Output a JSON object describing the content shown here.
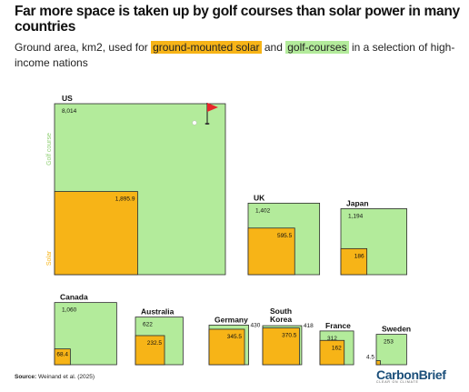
{
  "title": "Far more space is taken up by golf courses than solar power in many countries",
  "subtitle": {
    "before": "Ground area, km2, used for",
    "solar_label": "ground-mounted solar",
    "middle": "and",
    "golf_label": "golf-courses",
    "after": "in a selection of high-income nations"
  },
  "side_labels": {
    "golf": "Golf course",
    "solar": "Solar"
  },
  "source": {
    "label": "Source:",
    "text": "Weinand et al. (2025)"
  },
  "logo": {
    "name": "CarbonBrief",
    "tagline": "CLEAR ON CLIMATE"
  },
  "colors": {
    "golf": "#b3eb9b",
    "solar": "#f7b417",
    "stroke": "#2a2a2a",
    "flag": "#e8262b"
  },
  "chart_data": {
    "type": "area",
    "series": [
      {
        "name": "Golf course",
        "values": [
          8014,
          1402,
          1194,
          1060,
          622,
          430,
          418,
          312,
          253
        ]
      },
      {
        "name": "Solar",
        "values": [
          1895.9,
          595.5,
          186,
          68.4,
          232.5,
          345.5,
          370.5,
          162,
          4.5
        ]
      }
    ],
    "countries": [
      {
        "name": "US",
        "golf": 8014,
        "solar": 1895.9,
        "golf_label": "8,014",
        "solar_label": "1,895.9"
      },
      {
        "name": "UK",
        "golf": 1402,
        "solar": 595.5,
        "golf_label": "1,402",
        "solar_label": "595.5"
      },
      {
        "name": "Japan",
        "golf": 1194,
        "solar": 186,
        "golf_label": "1,194",
        "solar_label": "186"
      },
      {
        "name": "Canada",
        "golf": 1060,
        "solar": 68.4,
        "golf_label": "1,060",
        "solar_label": "68.4"
      },
      {
        "name": "Australia",
        "golf": 622,
        "solar": 232.5,
        "golf_label": "622",
        "solar_label": "232.5"
      },
      {
        "name": "Germany",
        "golf": 430,
        "solar": 345.5,
        "golf_label": "430",
        "solar_label": "345.5"
      },
      {
        "name": "South Korea",
        "golf": 418,
        "solar": 370.5,
        "golf_label": "418",
        "solar_label": "370.5"
      },
      {
        "name": "France",
        "golf": 312,
        "solar": 162,
        "golf_label": "312",
        "solar_label": "162"
      },
      {
        "name": "Sweden",
        "golf": 253,
        "solar": 4.5,
        "golf_label": "253",
        "solar_label": "4.5"
      }
    ]
  }
}
